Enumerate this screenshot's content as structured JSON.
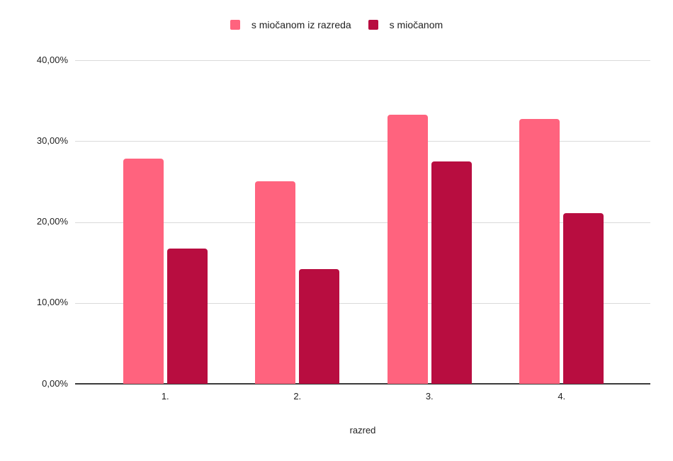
{
  "chart_data": {
    "type": "bar",
    "title": "",
    "categories": [
      "1.",
      "2.",
      "3.",
      "4."
    ],
    "series": [
      {
        "name": "s miočanom iz razreda",
        "color": "#ff637e",
        "values": [
          27.8,
          25.0,
          33.3,
          32.7
        ]
      },
      {
        "name": "s miočanom",
        "color": "#b80d40",
        "values": [
          16.7,
          14.2,
          27.5,
          21.1
        ]
      }
    ],
    "xlabel": "razred",
    "ylabel": "",
    "ylim": [
      0,
      40
    ],
    "ytick_step": 10,
    "ytick_labels": [
      "0,00%",
      "10,00%",
      "20,00%",
      "30,00%",
      "40,00%"
    ],
    "value_format": "percent-comma",
    "grid": true,
    "legend_position": "top",
    "colors": {
      "gridline": "#dadada",
      "axis_line": "#3b3b3b",
      "label_text": "#1f1f1f",
      "background": "#ffffff"
    }
  }
}
